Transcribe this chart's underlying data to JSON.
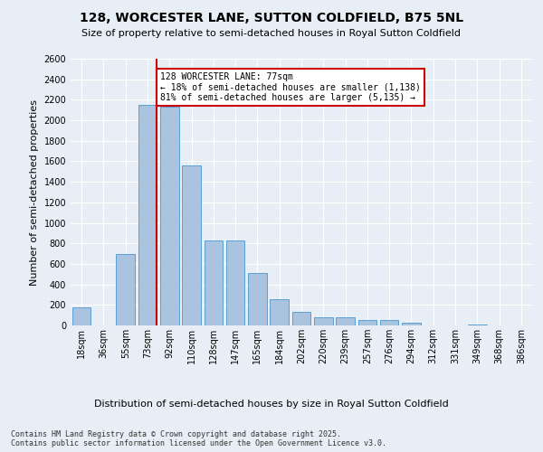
{
  "title": "128, WORCESTER LANE, SUTTON COLDFIELD, B75 5NL",
  "subtitle": "Size of property relative to semi-detached houses in Royal Sutton Coldfield",
  "xlabel": "Distribution of semi-detached houses by size in Royal Sutton Coldfield",
  "ylabel": "Number of semi-detached properties",
  "categories": [
    "18sqm",
    "36sqm",
    "55sqm",
    "73sqm",
    "92sqm",
    "110sqm",
    "128sqm",
    "147sqm",
    "165sqm",
    "184sqm",
    "202sqm",
    "220sqm",
    "239sqm",
    "257sqm",
    "276sqm",
    "294sqm",
    "312sqm",
    "331sqm",
    "349sqm",
    "368sqm",
    "386sqm"
  ],
  "values": [
    180,
    0,
    700,
    2150,
    2130,
    1560,
    830,
    830,
    510,
    255,
    130,
    75,
    75,
    50,
    50,
    25,
    0,
    0,
    10,
    0,
    0
  ],
  "bar_color": "#aac4e0",
  "bar_edge_color": "#5a9fd4",
  "background_color": "#e8eef5",
  "grid_color": "#ffffff",
  "property_line_color": "#cc0000",
  "property_bar_index": 3,
  "annotation_title": "128 WORCESTER LANE: 77sqm",
  "annotation_line1": "← 18% of semi-detached houses are smaller (1,138)",
  "annotation_line2": "81% of semi-detached houses are larger (5,135) →",
  "annotation_box_color": "#cc0000",
  "footer1": "Contains HM Land Registry data © Crown copyright and database right 2025.",
  "footer2": "Contains public sector information licensed under the Open Government Licence v3.0.",
  "ylim": [
    0,
    2600
  ],
  "yticks": [
    0,
    200,
    400,
    600,
    800,
    1000,
    1200,
    1400,
    1600,
    1800,
    2000,
    2200,
    2400,
    2600
  ],
  "title_fontsize": 10,
  "subtitle_fontsize": 8,
  "ylabel_fontsize": 8,
  "xlabel_fontsize": 8,
  "tick_fontsize": 7,
  "annotation_fontsize": 7,
  "footer_fontsize": 6
}
